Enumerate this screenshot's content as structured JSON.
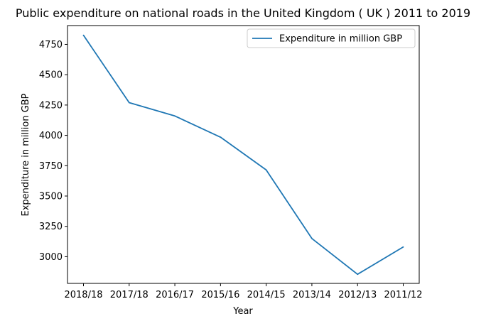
{
  "chart_data": {
    "type": "line",
    "title": "Public expenditure on national roads in the United Kingdom ( UK ) 2011 to 2019",
    "xlabel": "Year",
    "ylabel": "Expenditure in million GBP",
    "categories": [
      "2018/18",
      "2017/18",
      "2016/17",
      "2015/16",
      "2014/15",
      "2013/14",
      "2012/13",
      "2011/12"
    ],
    "series": [
      {
        "name": "Expenditure in million GBP",
        "color": "#1f77b4",
        "values": [
          4825,
          4270,
          4160,
          3985,
          3715,
          3150,
          2855,
          3080
        ]
      }
    ],
    "ylim": [
      2780,
      4905
    ],
    "yticks": [
      3000,
      3250,
      3500,
      3750,
      4000,
      4250,
      4500,
      4750
    ],
    "grid": false,
    "legend_position": "top-right"
  }
}
